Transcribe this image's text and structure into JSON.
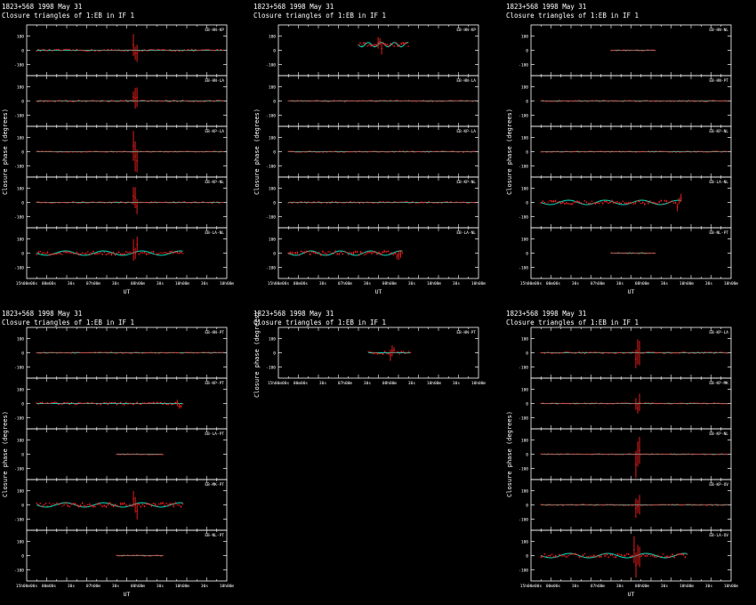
{
  "figure": {
    "source": "1823+568",
    "date": "1998 May 31",
    "subtitle": "Closure triangles of 1:EB in IF 1",
    "ylabel": "Closure phase (degrees)",
    "xlabel": "UT",
    "x_ticks": [
      "15h00m00s",
      "00m00s",
      "30s",
      "07h00m",
      "30s",
      "08h00m",
      "30s",
      "10h00m",
      "30s",
      "10h00m"
    ],
    "y_ticks": [
      "100",
      "0",
      "-100"
    ],
    "colors": {
      "model": "#00e0c0",
      "data": "#ff2020",
      "frame": "#ffffff",
      "background": "#000000"
    }
  },
  "chart_data": [
    {
      "type": "scatter",
      "title": "1823+568 1998 May 31",
      "subtitle": "Closure triangles of 1:EB in IF 1",
      "ylabel": "Closure phase (degrees)",
      "xlabel": "UT",
      "ylim": [
        -180,
        180
      ],
      "xlim": [
        0,
        1
      ],
      "grid": false,
      "triangles": [
        {
          "name": "EB-HN-KP",
          "x_start": 0.05,
          "x_end": 0.98,
          "baseline": 0,
          "spread": 6,
          "spike_at": 0.54,
          "spike_size": 130
        },
        {
          "name": "EB-HN-LA",
          "x_start": 0.05,
          "x_end": 0.98,
          "baseline": 0,
          "spread": 5,
          "spike_at": 0.54,
          "spike_size": 110
        },
        {
          "name": "EB-KP-LA",
          "x_start": 0.05,
          "x_end": 0.98,
          "baseline": 0,
          "spread": 3,
          "spike_at": 0.54,
          "spike_size": 160
        },
        {
          "name": "EB-KP-NL",
          "x_start": 0.05,
          "x_end": 0.98,
          "baseline": 0,
          "spread": 5,
          "spike_at": 0.54,
          "spike_size": 110
        },
        {
          "name": "EB-LA-NL",
          "x_start": 0.05,
          "x_end": 0.78,
          "baseline": 0,
          "spread": 12,
          "spike_at": 0.54,
          "spike_size": 130
        }
      ]
    },
    {
      "type": "scatter",
      "title": "1823+568 1998 May 31",
      "subtitle": "Closure triangles of 1:EB in IF 1",
      "ylabel": "Closure phase (degrees)",
      "xlabel": "UT",
      "ylim": [
        -180,
        180
      ],
      "xlim": [
        0,
        1
      ],
      "grid": false,
      "triangles": [
        {
          "name": "EB-HN-KP",
          "x_start": 0.4,
          "x_end": 0.65,
          "baseline": 40,
          "spread": 12,
          "spike_at": 0.51,
          "spike_size": 60
        },
        {
          "name": "EB-HN-LA",
          "x_start": 0.05,
          "x_end": 0.98,
          "baseline": 0,
          "spread": 4,
          "spike_at": -1,
          "spike_size": 0
        },
        {
          "name": "EB-KP-LA",
          "x_start": 0.05,
          "x_end": 0.98,
          "baseline": 0,
          "spread": 4,
          "spike_at": -1,
          "spike_size": 0
        },
        {
          "name": "EB-KP-NL",
          "x_start": 0.05,
          "x_end": 0.98,
          "baseline": 0,
          "spread": 5,
          "spike_at": -1,
          "spike_size": 0
        },
        {
          "name": "EB-LA-NL",
          "x_start": 0.05,
          "x_end": 0.62,
          "baseline": 0,
          "spread": 14,
          "spike_at": 0.6,
          "spike_size": 50
        }
      ]
    },
    {
      "type": "scatter",
      "title": "1823+568 1998 May 31",
      "subtitle": "Closure triangles of 1:EB in IF 1",
      "ylabel": "Closure phase (degrees)",
      "xlabel": "UT",
      "ylim": [
        -180,
        180
      ],
      "xlim": [
        0,
        1
      ],
      "grid": false,
      "triangles": [
        {
          "name": "EB-HN-NL",
          "x_start": 0.4,
          "x_end": 0.62,
          "baseline": 0,
          "spread": 4,
          "spike_at": -1,
          "spike_size": 0
        },
        {
          "name": "EB-HN-PT",
          "x_start": 0.05,
          "x_end": 0.98,
          "baseline": 0,
          "spread": 4,
          "spike_at": -1,
          "spike_size": 0
        },
        {
          "name": "EB-KP-NL",
          "x_start": 0.05,
          "x_end": 0.98,
          "baseline": 0,
          "spread": 4,
          "spike_at": -1,
          "spike_size": 0
        },
        {
          "name": "EB-LA-NL",
          "x_start": 0.05,
          "x_end": 0.75,
          "baseline": 0,
          "spread": 12,
          "spike_at": 0.74,
          "spike_size": 70
        },
        {
          "name": "EB-NL-PT",
          "x_start": 0.4,
          "x_end": 0.62,
          "baseline": 0,
          "spread": 4,
          "spike_at": -1,
          "spike_size": 0
        }
      ]
    },
    {
      "type": "scatter",
      "title": "1823+568 1998 May 31",
      "subtitle": "Closure triangles of 1:EB in IF 1",
      "ylabel": "Closure phase (degrees)",
      "xlabel": "UT",
      "ylim": [
        -180,
        180
      ],
      "xlim": [
        0,
        1
      ],
      "grid": false,
      "triangles": [
        {
          "name": "EB-HN-PT",
          "x_start": 0.05,
          "x_end": 0.98,
          "baseline": 0,
          "spread": 4,
          "spike_at": -1,
          "spike_size": 0
        },
        {
          "name": "EB-KP-PT",
          "x_start": 0.05,
          "x_end": 0.78,
          "baseline": 0,
          "spread": 8,
          "spike_at": 0.76,
          "spike_size": 40
        },
        {
          "name": "EB-LA-PT",
          "x_start": 0.45,
          "x_end": 0.68,
          "baseline": 0,
          "spread": 4,
          "spike_at": -1,
          "spike_size": 0
        },
        {
          "name": "EB-MK-PT",
          "x_start": 0.05,
          "x_end": 0.78,
          "baseline": 0,
          "spread": 14,
          "spike_at": 0.54,
          "spike_size": 90
        },
        {
          "name": "EB-NL-PT",
          "x_start": 0.45,
          "x_end": 0.68,
          "baseline": 0,
          "spread": 4,
          "spike_at": -1,
          "spike_size": 0
        }
      ]
    },
    {
      "type": "scatter",
      "title": "1823+568 1998 May 31",
      "subtitle": "Closure triangles of 1:EB in IF 1",
      "ylabel": "Closure phase (degrees)",
      "xlabel": "",
      "ylim": [
        -180,
        180
      ],
      "xlim": [
        0,
        1
      ],
      "grid": false,
      "triangles": [
        {
          "name": "EB-HN-PT",
          "x_start": 0.45,
          "x_end": 0.66,
          "baseline": 0,
          "spread": 10,
          "spike_at": 0.57,
          "spike_size": 60
        }
      ]
    },
    {
      "type": "scatter",
      "title": "1823+568 1998 May 31",
      "subtitle": "Closure triangles of 1:EB in IF 1",
      "ylabel": "Closure phase (degrees)",
      "xlabel": "UT",
      "ylim": [
        -180,
        180
      ],
      "xlim": [
        0,
        1
      ],
      "grid": false,
      "triangles": [
        {
          "name": "EB-KP-LA",
          "x_start": 0.05,
          "x_end": 0.98,
          "baseline": 0,
          "spread": 5,
          "spike_at": 0.53,
          "spike_size": 140
        },
        {
          "name": "EB-KP-MK",
          "x_start": 0.05,
          "x_end": 0.98,
          "baseline": 0,
          "spread": 4,
          "spike_at": 0.53,
          "spike_size": 110
        },
        {
          "name": "EB-KP-NL",
          "x_start": 0.05,
          "x_end": 0.98,
          "baseline": 0,
          "spread": 3,
          "spike_at": 0.53,
          "spike_size": 150
        },
        {
          "name": "EB-KP-OV",
          "x_start": 0.05,
          "x_end": 0.98,
          "baseline": 0,
          "spread": 4,
          "spike_at": 0.53,
          "spike_size": 120
        },
        {
          "name": "EB-LA-OV",
          "x_start": 0.05,
          "x_end": 0.78,
          "baseline": 0,
          "spread": 12,
          "spike_at": 0.53,
          "spike_size": 140
        }
      ]
    }
  ]
}
